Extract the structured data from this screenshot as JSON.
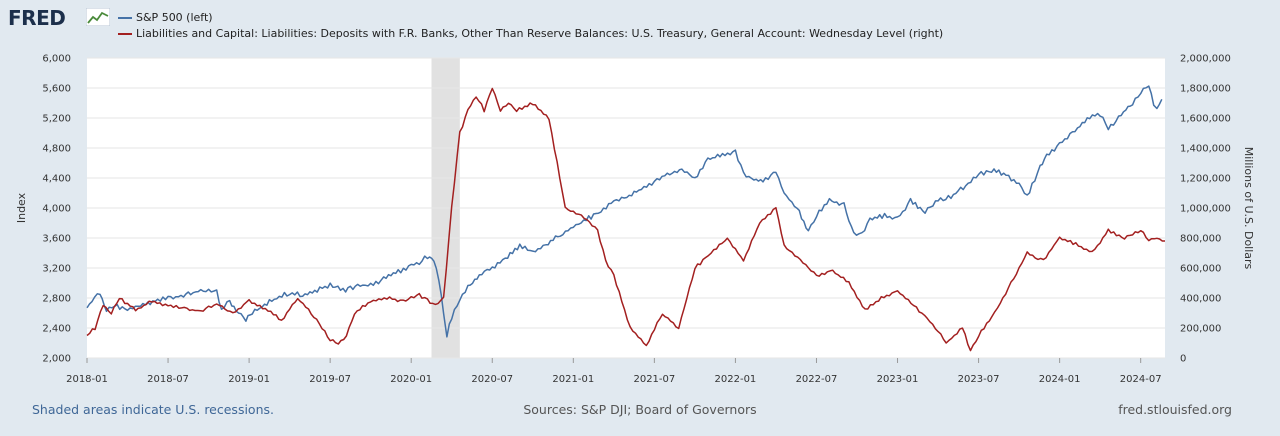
{
  "brand": {
    "name": "FRED"
  },
  "chart_data": {
    "type": "line",
    "series": [
      {
        "name": "S&P 500 (left)",
        "axis": "left",
        "color": "#4572a7",
        "x": [
          2018.0,
          2018.03,
          2018.08,
          2018.12,
          2018.17,
          2018.25,
          2018.33,
          2018.42,
          2018.5,
          2018.58,
          2018.67,
          2018.75,
          2018.8,
          2018.83,
          2018.88,
          2018.92,
          2018.98,
          2019.02,
          2019.08,
          2019.17,
          2019.25,
          2019.33,
          2019.42,
          2019.5,
          2019.58,
          2019.67,
          2019.75,
          2019.83,
          2019.92,
          2020.0,
          2020.05,
          2020.1,
          2020.14,
          2020.17,
          2020.2,
          2020.22,
          2020.25,
          2020.3,
          2020.35,
          2020.42,
          2020.5,
          2020.58,
          2020.67,
          2020.75,
          2020.83,
          2020.92,
          2021.0,
          2021.08,
          2021.17,
          2021.25,
          2021.33,
          2021.42,
          2021.5,
          2021.58,
          2021.67,
          2021.75,
          2021.83,
          2021.92,
          2022.0,
          2022.05,
          2022.1,
          2022.17,
          2022.25,
          2022.3,
          2022.38,
          2022.45,
          2022.5,
          2022.58,
          2022.67,
          2022.73,
          2022.78,
          2022.83,
          2022.92,
          2023.0,
          2023.08,
          2023.17,
          2023.25,
          2023.33,
          2023.42,
          2023.5,
          2023.58,
          2023.67,
          2023.75,
          2023.8,
          2023.83,
          2023.88,
          2023.92,
          2024.0,
          2024.08,
          2024.17,
          2024.25,
          2024.3,
          2024.38,
          2024.45,
          2024.5,
          2024.55,
          2024.58,
          2024.6,
          2024.63
        ],
        "values": [
          2670,
          2780,
          2850,
          2640,
          2700,
          2650,
          2710,
          2760,
          2800,
          2820,
          2880,
          2910,
          2880,
          2650,
          2760,
          2640,
          2520,
          2600,
          2700,
          2800,
          2870,
          2840,
          2900,
          2980,
          2900,
          2960,
          2980,
          3050,
          3150,
          3230,
          3280,
          3350,
          3300,
          3050,
          2600,
          2300,
          2550,
          2800,
          2950,
          3100,
          3200,
          3330,
          3500,
          3400,
          3500,
          3650,
          3750,
          3850,
          3950,
          4100,
          4150,
          4250,
          4350,
          4450,
          4500,
          4400,
          4650,
          4700,
          4750,
          4450,
          4400,
          4350,
          4500,
          4200,
          4000,
          3700,
          3900,
          4100,
          4050,
          3650,
          3650,
          3850,
          3900,
          3850,
          4100,
          3950,
          4100,
          4150,
          4300,
          4450,
          4500,
          4450,
          4300,
          4150,
          4300,
          4550,
          4700,
          4850,
          5000,
          5200,
          5250,
          5050,
          5250,
          5400,
          5550,
          5650,
          5400,
          5300,
          5450
        ]
      },
      {
        "name": "Liabilities and Capital: Liabilities: Deposits with F.R. Banks, Other Than Reserve Balances: U.S. Treasury, General Account: Wednesday Level (right)",
        "axis": "right",
        "color": "#a32020",
        "x": [
          2018.0,
          2018.05,
          2018.1,
          2018.15,
          2018.2,
          2018.3,
          2018.4,
          2018.5,
          2018.6,
          2018.7,
          2018.8,
          2018.9,
          2019.0,
          2019.1,
          2019.2,
          2019.3,
          2019.4,
          2019.5,
          2019.55,
          2019.6,
          2019.65,
          2019.75,
          2019.85,
          2019.95,
          2020.05,
          2020.15,
          2020.2,
          2020.25,
          2020.3,
          2020.35,
          2020.4,
          2020.45,
          2020.5,
          2020.55,
          2020.6,
          2020.65,
          2020.75,
          2020.85,
          2020.95,
          2021.05,
          2021.15,
          2021.2,
          2021.25,
          2021.35,
          2021.45,
          2021.55,
          2021.65,
          2021.75,
          2021.85,
          2021.95,
          2022.05,
          2022.15,
          2022.25,
          2022.3,
          2022.4,
          2022.5,
          2022.6,
          2022.7,
          2022.8,
          2022.9,
          2023.0,
          2023.1,
          2023.2,
          2023.3,
          2023.4,
          2023.45,
          2023.5,
          2023.6,
          2023.7,
          2023.8,
          2023.9,
          2024.0,
          2024.1,
          2024.2,
          2024.3,
          2024.4,
          2024.5,
          2024.55,
          2024.6,
          2024.65
        ],
        "values": [
          150000,
          200000,
          350000,
          300000,
          400000,
          320000,
          380000,
          350000,
          330000,
          310000,
          360000,
          300000,
          380000,
          330000,
          250000,
          400000,
          280000,
          120000,
          100000,
          150000,
          300000,
          380000,
          400000,
          380000,
          420000,
          350000,
          400000,
          1000000,
          1500000,
          1650000,
          1750000,
          1650000,
          1800000,
          1650000,
          1700000,
          1650000,
          1700000,
          1600000,
          1000000,
          950000,
          850000,
          650000,
          550000,
          200000,
          80000,
          300000,
          200000,
          600000,
          700000,
          800000,
          650000,
          900000,
          1000000,
          750000,
          650000,
          550000,
          580000,
          500000,
          320000,
          400000,
          450000,
          350000,
          250000,
          100000,
          200000,
          50000,
          150000,
          300000,
          500000,
          700000,
          650000,
          800000,
          760000,
          700000,
          850000,
          800000,
          850000,
          790000,
          800000,
          780000
        ]
      }
    ],
    "left_axis": {
      "label": "Index",
      "min": 2000,
      "max": 6000,
      "ticks": [
        "2,000",
        "2,400",
        "2,800",
        "3,200",
        "3,600",
        "4,000",
        "4,400",
        "4,800",
        "5,200",
        "5,600",
        "6,000"
      ]
    },
    "right_axis": {
      "label": "Millions of U.S. Dollars",
      "min": 0,
      "max": 2000000,
      "ticks": [
        "0",
        "200,000",
        "400,000",
        "600,000",
        "800,000",
        "1,000,000",
        "1,200,000",
        "1,400,000",
        "1,600,000",
        "1,800,000",
        "2,000,000"
      ]
    },
    "x_axis": {
      "min": 2018.0,
      "max": 2024.65,
      "ticks": [
        "2018-01",
        "2018-07",
        "2019-01",
        "2019-07",
        "2020-01",
        "2020-07",
        "2021-01",
        "2021-07",
        "2022-01",
        "2022-07",
        "2023-01",
        "2023-07",
        "2024-01",
        "2024-07"
      ],
      "tick_values": [
        2018.0,
        2018.5,
        2019.0,
        2019.5,
        2020.0,
        2020.5,
        2021.0,
        2021.5,
        2022.0,
        2022.5,
        2023.0,
        2023.5,
        2024.0,
        2024.5
      ]
    },
    "recession": {
      "start": 2020.125,
      "end": 2020.3
    }
  },
  "legend": {
    "sp500": "S&P 500 (left)",
    "tga": "Liabilities and Capital: Liabilities: Deposits with F.R. Banks, Other Than Reserve Balances: U.S. Treasury, General Account: Wednesday Level (right)"
  },
  "footer": {
    "left": "Shaded areas indicate U.S. recessions.",
    "middle": "Sources: S&P DJI; Board of Governors",
    "right": "fred.stlouisfed.org"
  }
}
